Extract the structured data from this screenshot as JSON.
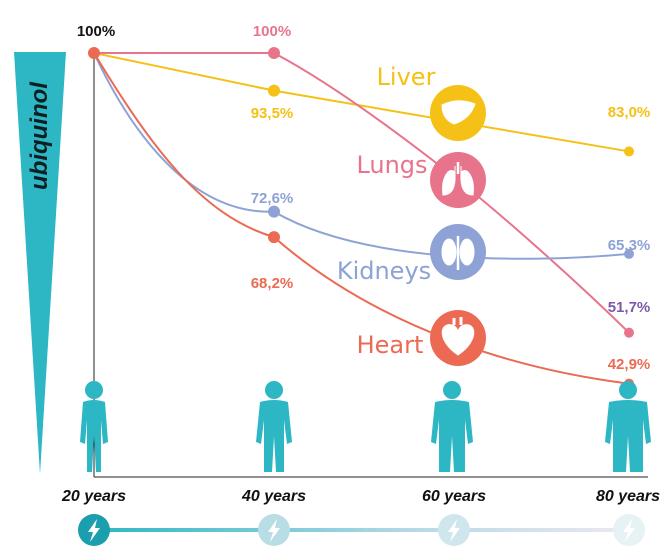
{
  "chart_data": {
    "type": "line",
    "x": [
      "20 years",
      "40 years",
      "60 years",
      "80 years"
    ],
    "ylim": [
      0,
      100
    ],
    "ylabel": "ubiquinol",
    "series": [
      {
        "name": "Liver",
        "color": "#f5c116",
        "icon": "liver-icon",
        "values": [
          100,
          93.5,
          null,
          83.0
        ],
        "labels": [
          "",
          "93,5%",
          "",
          "83,0%"
        ]
      },
      {
        "name": "Lungs",
        "color": "#e8748c",
        "icon": "lungs-icon",
        "values": [
          100,
          100,
          null,
          51.7
        ],
        "labels": [
          "",
          "100%",
          "",
          "51,7%"
        ]
      },
      {
        "name": "Kidneys",
        "color": "#8ea2d6",
        "icon": "kidneys-icon",
        "values": [
          100,
          72.6,
          null,
          65.3
        ],
        "labels": [
          "",
          "72,6%",
          "",
          "65,3%"
        ]
      },
      {
        "name": "Heart",
        "color": "#ec6a54",
        "icon": "heart-icon",
        "values": [
          100,
          68.2,
          null,
          42.9
        ],
        "labels": [
          "",
          "68,2%",
          "",
          "42,9%"
        ]
      }
    ],
    "start_label": "100%",
    "grid": false,
    "legend": "inline"
  },
  "colors": {
    "accent": "#2db7c4",
    "label_5": "#7a5aa8"
  }
}
